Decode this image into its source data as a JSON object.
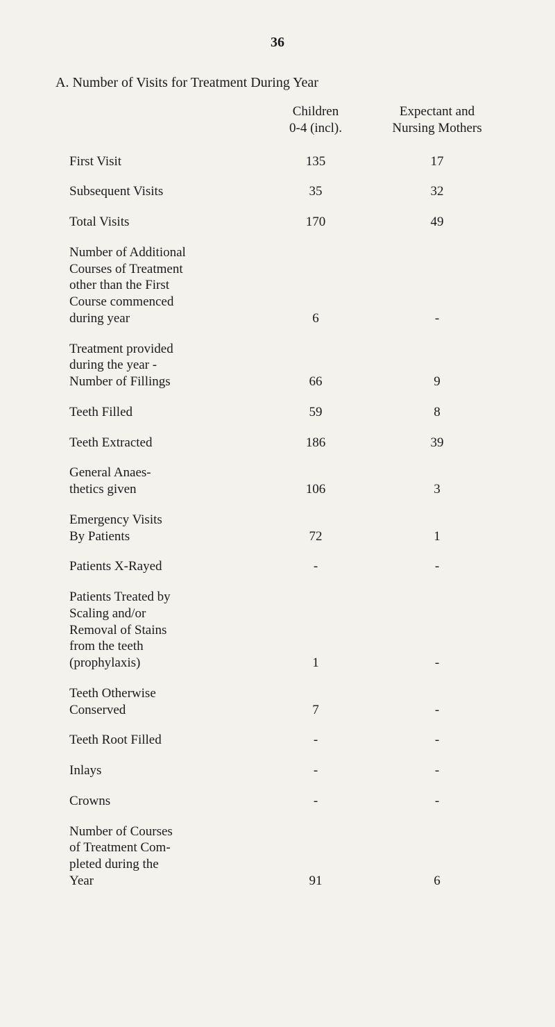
{
  "page_number": "36",
  "section_title": "A. Number of Visits for Treatment During Year",
  "columns": {
    "children": "Children\n0-4 (incl).",
    "expectant": "Expectant and\nNursing Mothers"
  },
  "rows": [
    {
      "label": "First Visit",
      "children": "135",
      "expectant": "17"
    },
    {
      "label": "Subsequent Visits",
      "children": "35",
      "expectant": "32"
    },
    {
      "label": "Total Visits",
      "children": "170",
      "expectant": "49"
    },
    {
      "label": "Number of Additional\nCourses of Treatment\nother than the First\nCourse commenced\nduring year",
      "children": "6",
      "expectant": "-"
    },
    {
      "label": "Treatment provided\nduring the year -\nNumber of Fillings",
      "children": "66",
      "expectant": "9"
    },
    {
      "label": "Teeth Filled",
      "children": "59",
      "expectant": "8"
    },
    {
      "label": "Teeth Extracted",
      "children": "186",
      "expectant": "39"
    },
    {
      "label": "General Anaes-\nthetics given",
      "children": "106",
      "expectant": "3"
    },
    {
      "label": "Emergency Visits\nBy Patients",
      "children": "72",
      "expectant": "1"
    },
    {
      "label": "Patients X-Rayed",
      "children": "-",
      "expectant": "-"
    },
    {
      "label": "Patients Treated by\nScaling and/or\nRemoval of Stains\nfrom the teeth\n(prophylaxis)",
      "children": "1",
      "expectant": "-"
    },
    {
      "label": "Teeth Otherwise\nConserved",
      "children": "7",
      "expectant": "-"
    },
    {
      "label": "Teeth Root Filled",
      "children": "-",
      "expectant": "-"
    },
    {
      "label": "Inlays",
      "children": "-",
      "expectant": "-"
    },
    {
      "label": "Crowns",
      "children": "-",
      "expectant": "-"
    },
    {
      "label": "Number of Courses\nof Treatment Com-\npleted during the\nYear",
      "children": "91",
      "expectant": "6"
    }
  ]
}
